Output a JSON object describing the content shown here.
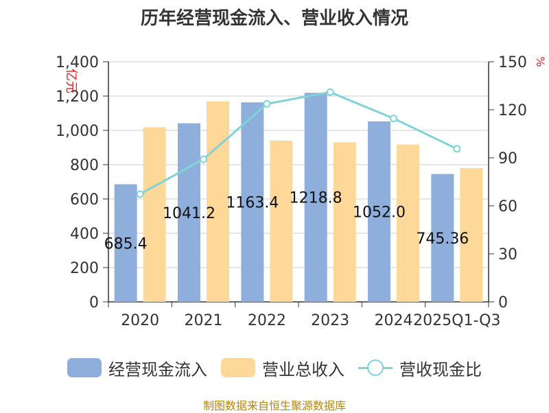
{
  "chart_data": {
    "type": "bar+line",
    "title": "历年经营现金流入、营业收入情况",
    "categories": [
      "2020",
      "2021",
      "2022",
      "2023",
      "2024",
      "2025Q1-Q3"
    ],
    "series": [
      {
        "name": "经营现金流入",
        "type": "bar",
        "axis": "left",
        "color": "#8eaedb",
        "values": [
          685.4,
          1041.2,
          1163.4,
          1218.8,
          1052.0,
          745.36
        ],
        "labels": [
          "685.4",
          "1041.2",
          "1163.4",
          "1218.8",
          "1052.0",
          "745.36"
        ]
      },
      {
        "name": "营业总收入",
        "type": "bar",
        "axis": "left",
        "color": "#fdd899",
        "values": [
          1018,
          1168,
          940,
          930,
          918,
          780
        ]
      },
      {
        "name": "营收现金比",
        "type": "line",
        "axis": "right",
        "color": "#7fd3d6",
        "values": [
          67.3,
          89.1,
          123.7,
          131.0,
          114.6,
          95.6
        ]
      }
    ],
    "left_axis": {
      "label": "亿元",
      "min": 0,
      "max": 1400,
      "ticks": [
        0,
        200,
        400,
        600,
        800,
        1000,
        1200,
        1400
      ],
      "tick_labels": [
        "0",
        "200",
        "400",
        "600",
        "800",
        "1,000",
        "1,200",
        "1,400"
      ]
    },
    "right_axis": {
      "label": "%",
      "min": 0,
      "max": 150,
      "ticks": [
        0,
        30,
        60,
        90,
        120,
        150
      ],
      "tick_labels": [
        "0",
        "30",
        "60",
        "90",
        "120",
        "150"
      ]
    },
    "grid": true,
    "legend_position": "bottom"
  },
  "legend": {
    "items": [
      "经营现金流入",
      "营业总收入",
      "营收现金比"
    ]
  },
  "source": "制图数据来自恒生聚源数据库"
}
